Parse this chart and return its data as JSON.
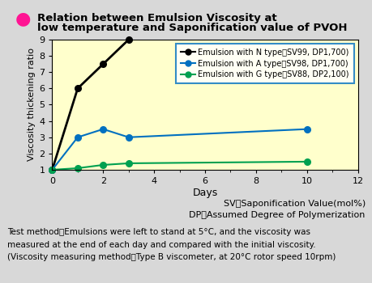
{
  "title_line1": "Relation between Emulsion Viscosity at",
  "title_line2": "low temperature and Saponification value of PVOH",
  "xlabel": "Days",
  "ylabel": "Viscosity thickening ratio",
  "xlim": [
    0,
    12
  ],
  "ylim": [
    1,
    9
  ],
  "xticks": [
    0,
    2,
    4,
    6,
    8,
    10,
    12
  ],
  "yticks": [
    1,
    2,
    3,
    4,
    5,
    6,
    7,
    8,
    9
  ],
  "plot_bg": "#ffffcc",
  "fig_bg": "#d8d8d8",
  "series": [
    {
      "x": [
        0,
        1,
        2,
        3
      ],
      "y": [
        1,
        6,
        7.5,
        9
      ],
      "color": "#000000",
      "linewidth": 2.0
    },
    {
      "x": [
        0,
        1,
        2,
        3,
        10
      ],
      "y": [
        1,
        3.0,
        3.5,
        3.0,
        3.5
      ],
      "color": "#0070c0",
      "linewidth": 1.5
    },
    {
      "x": [
        0,
        1,
        2,
        3,
        10
      ],
      "y": [
        1,
        1.1,
        1.3,
        1.4,
        1.5
      ],
      "color": "#00a050",
      "linewidth": 1.5
    }
  ],
  "legend_labels": [
    "Emulsion with N type（SV99, DP1,700)",
    "Emulsion with A type（SV98, DP1,700)",
    "Emulsion with G type（SV88, DP2,100)"
  ],
  "legend_colors": [
    "#000000",
    "#0070c0",
    "#00a050"
  ],
  "bullet_color": "#ff1493",
  "note1": "SV：Saponification Value(mol%)",
  "note2": "DP：Assumed Degree of Polymerization",
  "footnote_line1": "Test method：Emulsions were left to stand at 5°C, and the viscosity was",
  "footnote_line2": "measured at the end of each day and compared with the initial viscosity.",
  "footnote_line3": "(Viscosity measuring method：Type B viscometer, at 20°C rotor speed 10rpm)"
}
